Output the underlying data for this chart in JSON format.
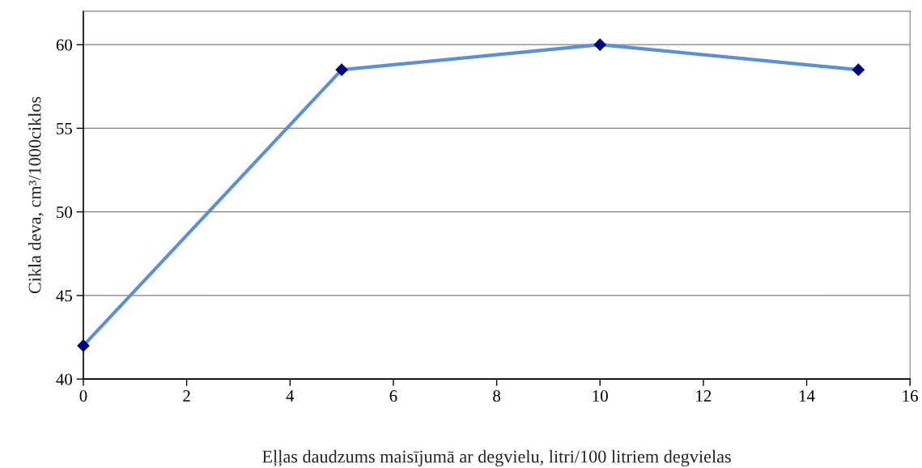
{
  "chart_data": {
    "type": "line",
    "xlabel": "Eļļas daudzums maisījumā ar degvielu, litri/100 litriem degvielas",
    "ylabel": "Cikla deva, cm³/1000ciklos",
    "x": [
      0,
      5,
      10,
      15
    ],
    "series": [
      {
        "color": "#5b8fd6",
        "values": [
          42,
          58.5,
          60,
          58.5
        ]
      }
    ],
    "xlim": [
      0,
      16
    ],
    "xticks": [
      0,
      2,
      4,
      6,
      8,
      10,
      12,
      14,
      16
    ],
    "ylim": [
      40,
      62
    ],
    "yticks": [
      40,
      45,
      50,
      55,
      60
    ],
    "grid": "y",
    "legend": false,
    "marker": "diamond",
    "line_style": "solid"
  }
}
